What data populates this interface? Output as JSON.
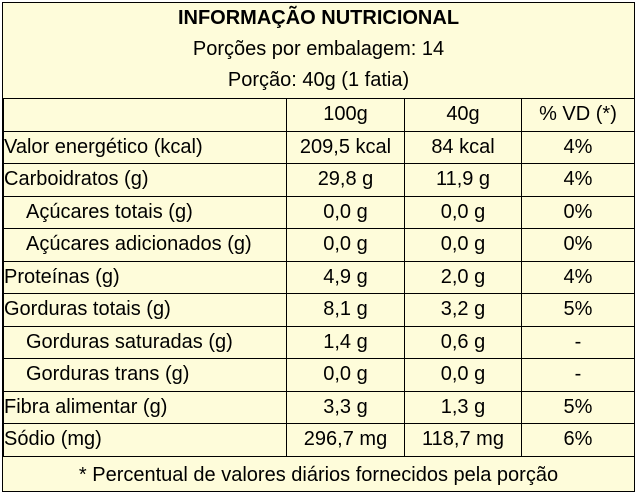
{
  "header": {
    "title": "INFORMAÇÃO NUTRICIONAL",
    "servings": "Porções por embalagem: 14",
    "portion": "Porção: 40g (1 fatia)"
  },
  "columns": [
    "",
    "100g",
    "40g",
    "% VD (*)"
  ],
  "rows": [
    {
      "name": "Valor energético (kcal)",
      "v100": "209,5 kcal",
      "v40": "84 kcal",
      "vd": "4%",
      "sub": false
    },
    {
      "name": "Carboidratos (g)",
      "v100": "29,8 g",
      "v40": "11,9 g",
      "vd": "4%",
      "sub": false
    },
    {
      "name": "Açúcares totais (g)",
      "v100": "0,0 g",
      "v40": "0,0 g",
      "vd": "0%",
      "sub": true
    },
    {
      "name": "Açúcares adicionados (g)",
      "v100": "0,0 g",
      "v40": "0,0 g",
      "vd": "0%",
      "sub": true
    },
    {
      "name": "Proteínas (g)",
      "v100": "4,9 g",
      "v40": "2,0 g",
      "vd": "4%",
      "sub": false
    },
    {
      "name": "Gorduras totais (g)",
      "v100": "8,1 g",
      "v40": "3,2 g",
      "vd": "5%",
      "sub": false
    },
    {
      "name": "Gorduras saturadas (g)",
      "v100": "1,4 g",
      "v40": "0,6 g",
      "vd": "-",
      "sub": true
    },
    {
      "name": "Gorduras trans (g)",
      "v100": "0,0 g",
      "v40": "0,0 g",
      "vd": "-",
      "sub": true
    },
    {
      "name": "Fibra alimentar (g)",
      "v100": "3,3 g",
      "v40": "1,3 g",
      "vd": "5%",
      "sub": false
    },
    {
      "name": "Sódio (mg)",
      "v100": "296,7 mg",
      "v40": "118,7 mg",
      "vd": "6%",
      "sub": false
    }
  ],
  "footer": "* Percentual de valores diários fornecidos pela porção",
  "colors": {
    "background": "#fefcda",
    "border": "#000000",
    "text": "#000000"
  }
}
